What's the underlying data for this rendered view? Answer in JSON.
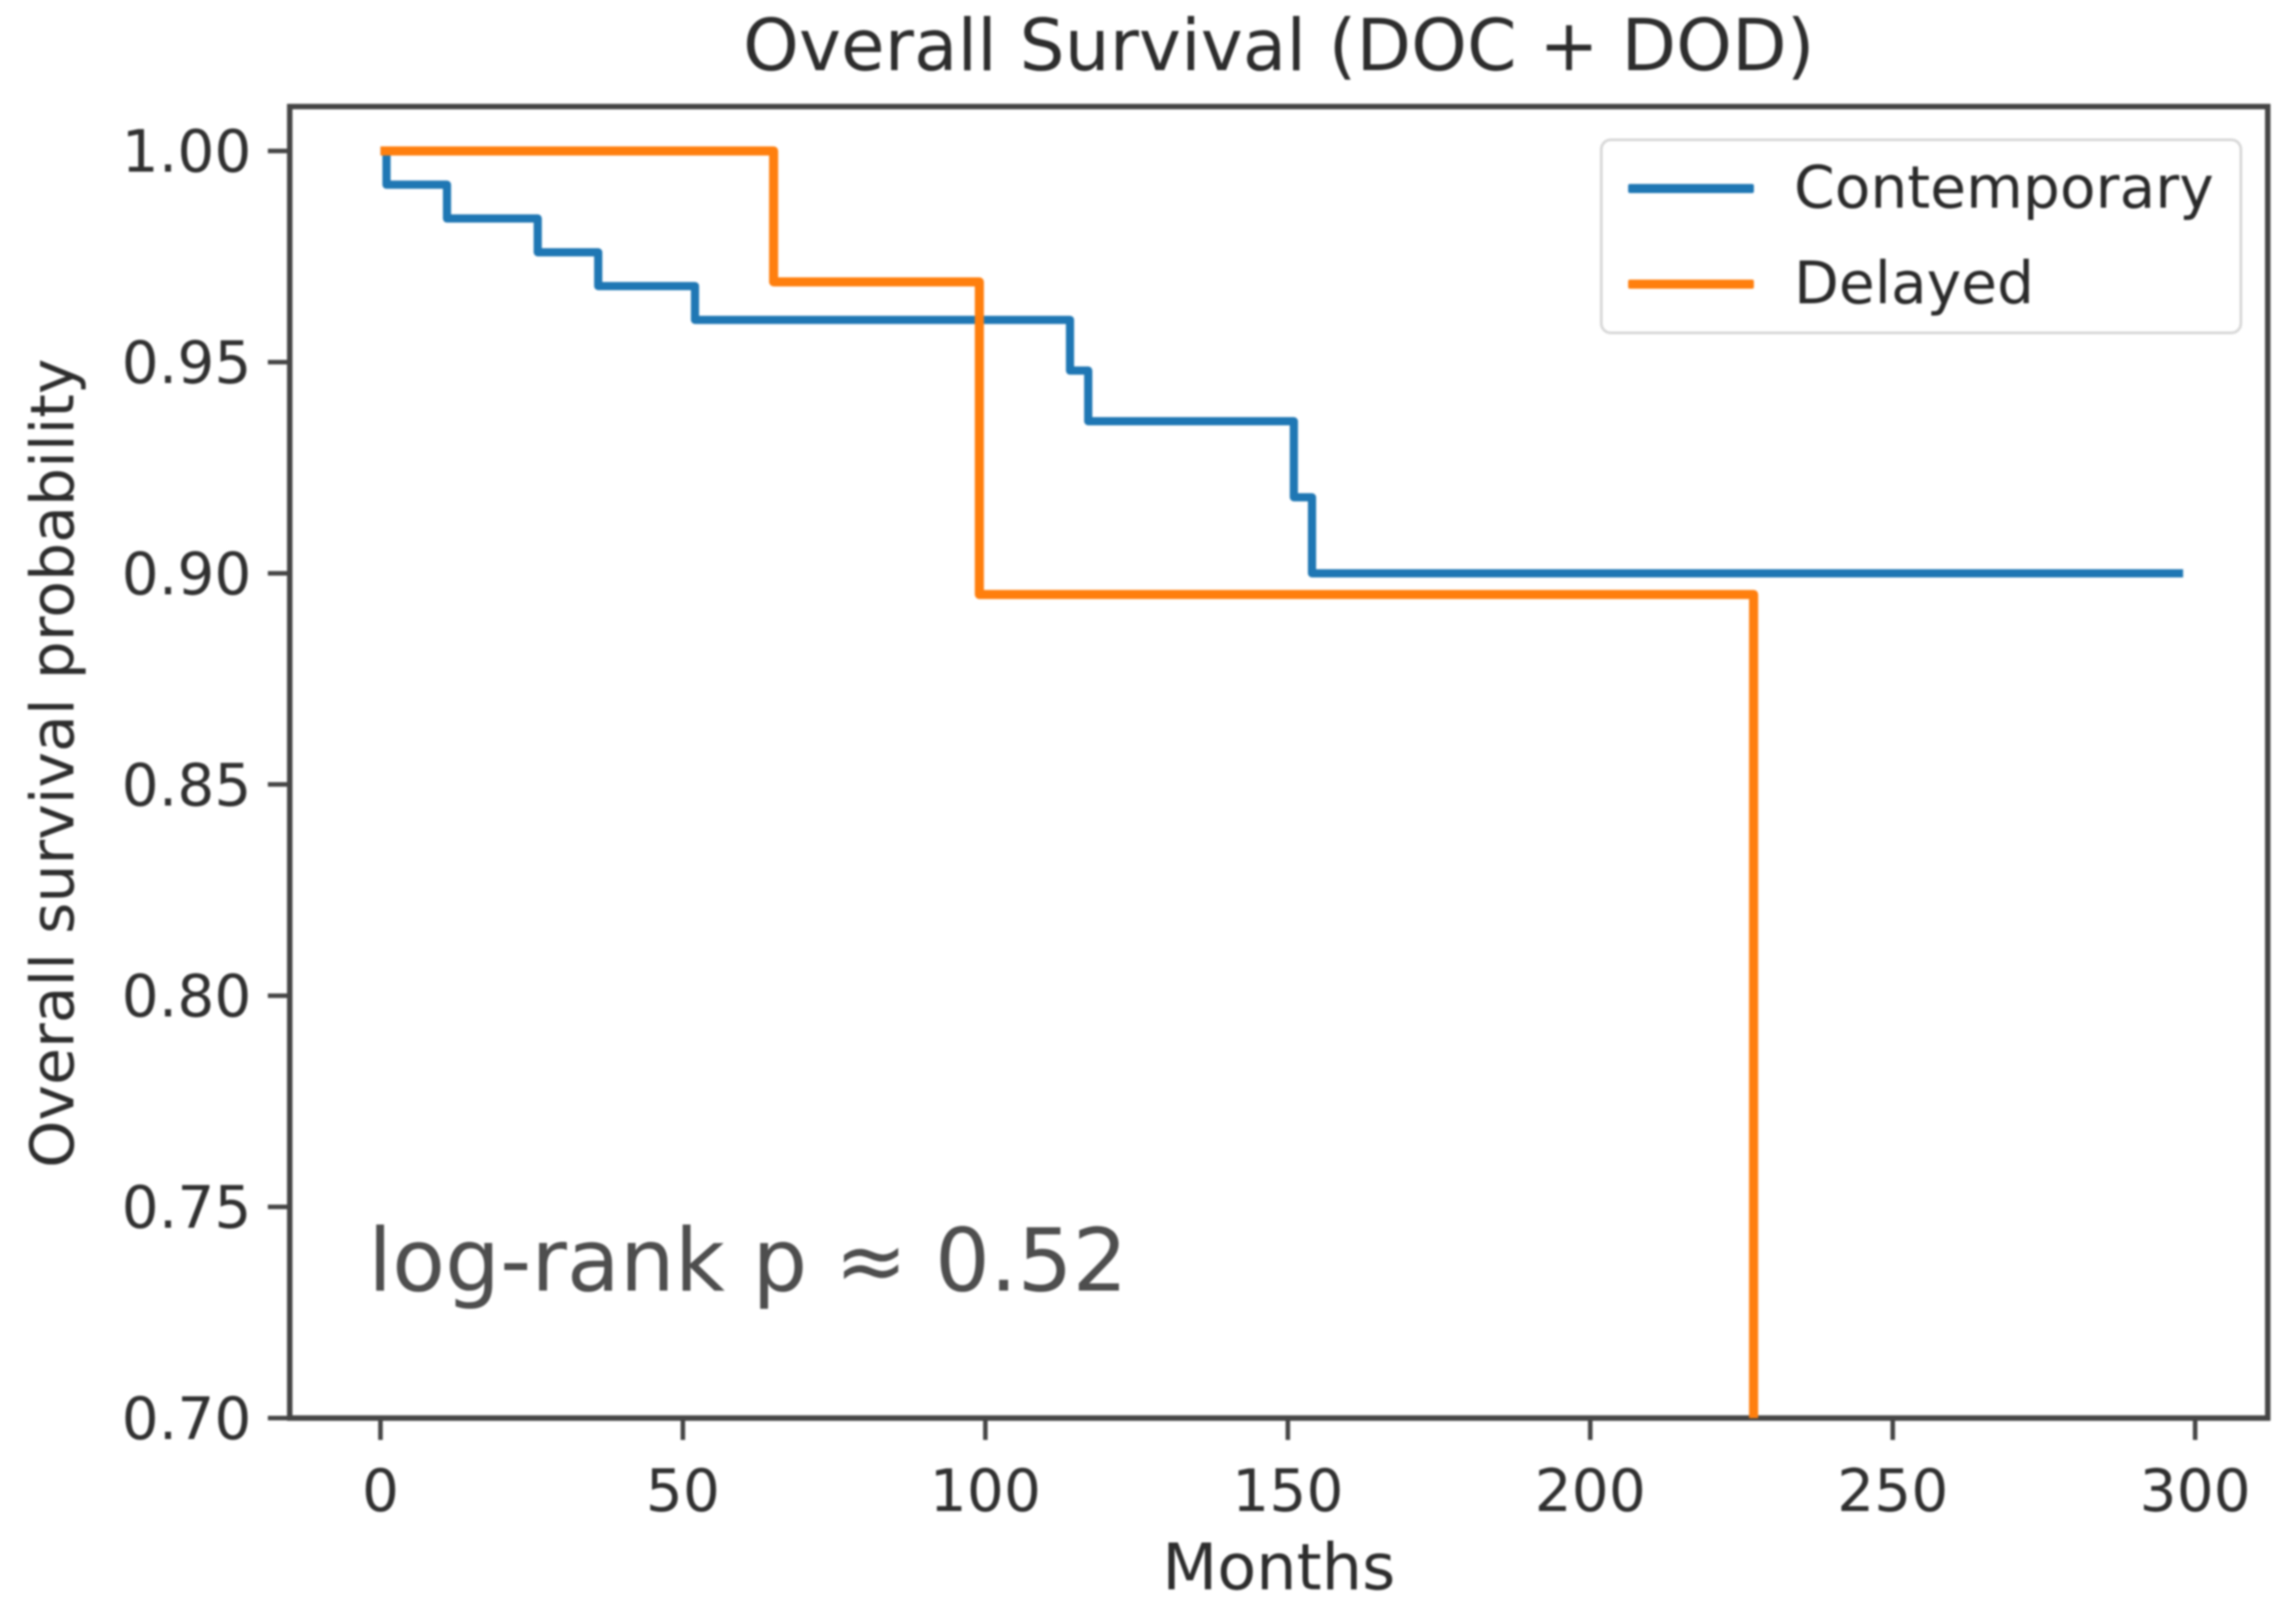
{
  "chart_data": {
    "type": "line",
    "chart_style": "kaplan_meier_step",
    "title": "Overall Survival (DOC + DOD)",
    "xlabel": "Months",
    "ylabel": "Overall survival probability",
    "xlim": [
      -15,
      312
    ],
    "ylim": [
      0.7,
      1.0105
    ],
    "xticks": [
      0,
      50,
      100,
      150,
      200,
      250,
      300
    ],
    "yticks": [
      {
        "value": 1.0,
        "label": "1.00"
      },
      {
        "value": 0.95,
        "label": "0.95"
      },
      {
        "value": 0.9,
        "label": "0.90"
      },
      {
        "value": 0.85,
        "label": "0.85"
      },
      {
        "value": 0.8,
        "label": "0.80"
      },
      {
        "value": 0.75,
        "label": "0.75"
      },
      {
        "value": 0.7,
        "label": "0.70"
      }
    ],
    "grid": false,
    "legend": {
      "position": "upper right",
      "items": [
        "Contemporary",
        "Delayed"
      ]
    },
    "annotation": {
      "text": "log-rank p ≈ 0.52",
      "x_months": -2,
      "y_probability": 0.728
    },
    "series": [
      {
        "name": "Contemporary",
        "color": "#1f77b4",
        "line_width": 9,
        "start": [
          0,
          1.0
        ],
        "steps": [
          [
            1,
            0.992
          ],
          [
            11,
            0.984
          ],
          [
            26,
            0.976
          ],
          [
            36,
            0.968
          ],
          [
            52,
            0.96
          ],
          [
            114,
            0.948
          ],
          [
            117,
            0.936
          ],
          [
            151,
            0.918
          ],
          [
            154,
            0.9
          ]
        ],
        "end_time": 298,
        "final_value": 0.9
      },
      {
        "name": "Delayed",
        "color": "#ff7f0e",
        "line_width": 10,
        "start": [
          0,
          1.0
        ],
        "steps": [
          [
            65,
            0.969
          ],
          [
            99,
            0.895
          ],
          [
            227,
            0.7
          ]
        ],
        "end_time": 227,
        "final_value": 0.7,
        "final_drop_clipped_at_axis": true
      }
    ]
  }
}
